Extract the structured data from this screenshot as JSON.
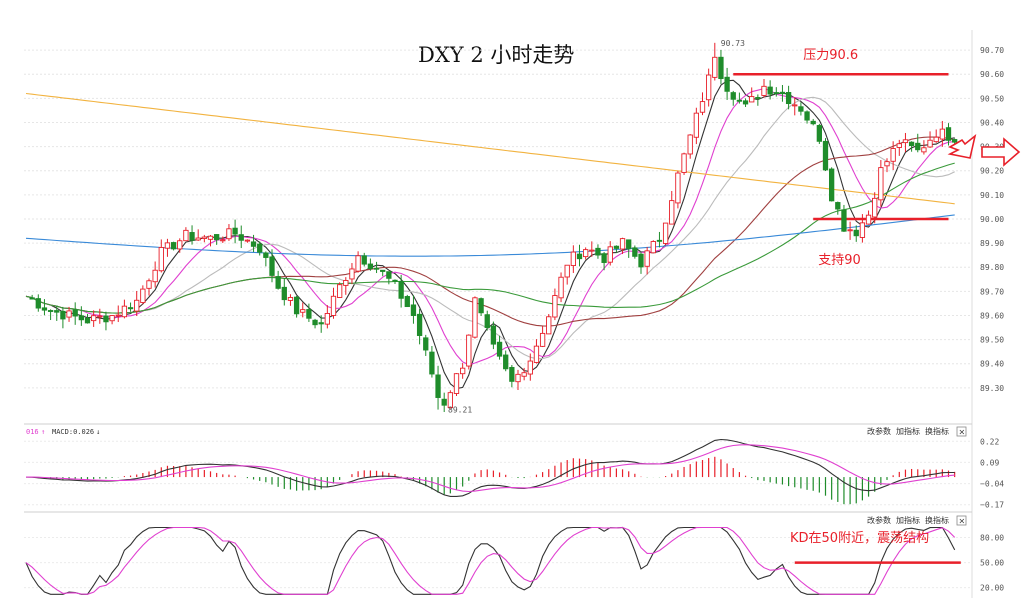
{
  "chart_data": {
    "type": "candlestick",
    "title": "DXY 2 小时走势",
    "price_panel": {
      "y_ticks": [
        "90.70",
        "90.60",
        "90.50",
        "90.40",
        "90.30",
        "90.20",
        "90.10",
        "90.00",
        "89.90",
        "89.80",
        "89.70",
        "89.60",
        "89.50",
        "89.40",
        "89.30"
      ],
      "ylim": [
        89.2,
        90.75
      ],
      "high_label": "90.73",
      "high_value": 90.73,
      "high_index": 112,
      "low_label": "89.21",
      "low_value": 89.21,
      "low_index": 67,
      "resistance": {
        "value": 90.6,
        "label": "压力90.6",
        "from_index": 115,
        "to_index": 150
      },
      "support": {
        "value": 90.0,
        "label": "支持90",
        "from_index": 128,
        "to_index": 150
      },
      "up_color": "#e8202a",
      "down_color": "#1f8c2b",
      "ma_colors": [
        "#333333",
        "#e040d0",
        "#bbbbbb",
        "#a04040",
        "#3a9a3a",
        "#3a8ad8",
        "#f2b340"
      ]
    },
    "macd_panel": {
      "header": "MACD:0.026",
      "header_prefix": "016",
      "controls": [
        "改参数",
        "加指标",
        "换指标"
      ],
      "close_glyph": "×",
      "y_ticks": [
        "0.22",
        "0.09",
        "−0.04",
        "−0.17"
      ],
      "ylim": [
        -0.19,
        0.24
      ]
    },
    "kd_panel": {
      "controls": [
        "改参数",
        "加指标",
        "换指标"
      ],
      "close_glyph": "×",
      "y_ticks": [
        "80.00",
        "50.00",
        "20.00"
      ],
      "ylim": [
        10,
        95
      ],
      "level_line": 50,
      "annotation": "KD在50附近，震荡结构"
    },
    "arrow_color": "#e8202a"
  }
}
